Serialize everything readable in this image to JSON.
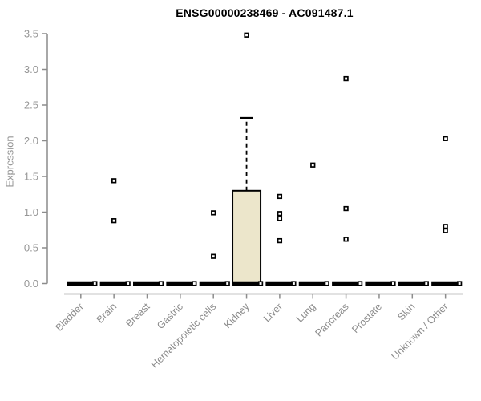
{
  "chart_data": {
    "type": "boxplot",
    "title": "ENSG00000238469 - AC091487.1",
    "ylabel": "Expression",
    "xlabel": "",
    "ylim": [
      0,
      3.5
    ],
    "yticks": [
      0.0,
      0.5,
      1.0,
      1.5,
      2.0,
      2.5,
      3.0,
      3.5
    ],
    "grid": false,
    "legend": false,
    "categories": [
      "Bladder",
      "Brain",
      "Breast",
      "Gastric",
      "Hematopoietic cells",
      "Kidney",
      "Liver",
      "Lung",
      "Pancreas",
      "Prostate",
      "Skin",
      "Unknown / Other"
    ],
    "boxes": [
      {
        "category": "Bladder",
        "median": 0,
        "q1": 0,
        "q3": 0,
        "whisker_low": 0,
        "whisker_high": 0,
        "outliers": []
      },
      {
        "category": "Brain",
        "median": 0,
        "q1": 0,
        "q3": 0,
        "whisker_low": 0,
        "whisker_high": 0,
        "outliers": [
          1.44,
          0.88
        ]
      },
      {
        "category": "Breast",
        "median": 0,
        "q1": 0,
        "q3": 0,
        "whisker_low": 0,
        "whisker_high": 0,
        "outliers": []
      },
      {
        "category": "Gastric",
        "median": 0,
        "q1": 0,
        "q3": 0,
        "whisker_low": 0,
        "whisker_high": 0,
        "outliers": []
      },
      {
        "category": "Hematopoietic cells",
        "median": 0,
        "q1": 0,
        "q3": 0,
        "whisker_low": 0,
        "whisker_high": 0,
        "outliers": [
          0.99,
          0.38
        ]
      },
      {
        "category": "Kidney",
        "median": 0,
        "q1": 0,
        "q3": 1.3,
        "whisker_low": 0,
        "whisker_high": 2.32,
        "outliers": [
          3.48
        ]
      },
      {
        "category": "Liver",
        "median": 0,
        "q1": 0,
        "q3": 0,
        "whisker_low": 0,
        "whisker_high": 0,
        "outliers": [
          1.22,
          0.98,
          0.91,
          0.6
        ]
      },
      {
        "category": "Lung",
        "median": 0,
        "q1": 0,
        "q3": 0,
        "whisker_low": 0,
        "whisker_high": 0,
        "outliers": [
          1.66
        ]
      },
      {
        "category": "Pancreas",
        "median": 0,
        "q1": 0,
        "q3": 0,
        "whisker_low": 0,
        "whisker_high": 0,
        "outliers": [
          2.87,
          1.05,
          0.62
        ]
      },
      {
        "category": "Prostate",
        "median": 0,
        "q1": 0,
        "q3": 0,
        "whisker_low": 0,
        "whisker_high": 0,
        "outliers": []
      },
      {
        "category": "Skin",
        "median": 0,
        "q1": 0,
        "q3": 0,
        "whisker_low": 0,
        "whisker_high": 0,
        "outliers": []
      },
      {
        "category": "Unknown / Other",
        "median": 0,
        "q1": 0,
        "q3": 0,
        "whisker_low": 0,
        "whisker_high": 0,
        "outliers": [
          2.03,
          0.8,
          0.74
        ]
      }
    ],
    "colors": {
      "box_fill": "#ECE6CB",
      "box_border": "#000000",
      "median_bar": "#000000",
      "outlier_marker_border": "#000000",
      "outlier_marker_fill": "#ffffff",
      "axis_line": "#8C8C8C",
      "tick_label": "#969696",
      "category_label": "#8C8C8C",
      "title": "#000000",
      "background": "#ffffff"
    }
  }
}
